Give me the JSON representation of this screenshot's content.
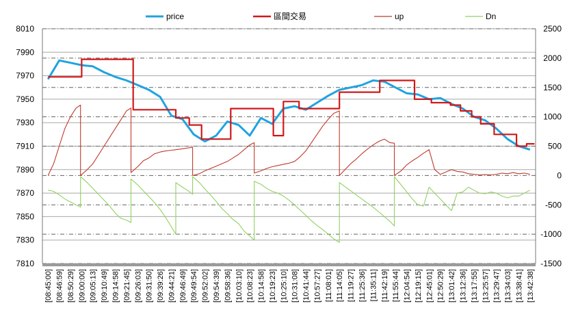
{
  "chart_data": {
    "type": "line",
    "legend": [
      {
        "name": "price",
        "color": "#1fa3e0"
      },
      {
        "name": "區間交易",
        "color": "#d01818"
      },
      {
        "name": "up",
        "color": "#c0392b"
      },
      {
        "name": "Dn",
        "color": "#8fd160"
      }
    ],
    "legend_position": "top",
    "y_left": {
      "min": 7810,
      "max": 8010,
      "ticks": [
        "8010",
        "7990",
        "7970",
        "7950",
        "7930",
        "7910",
        "7890",
        "7870",
        "7850",
        "7830",
        "7810"
      ]
    },
    "y_right": {
      "min": -1500,
      "max": 2500,
      "ticks": [
        "2500",
        "2000",
        "1500",
        "1000",
        "500",
        "0",
        "-500",
        "-1000",
        "-1500"
      ]
    },
    "x_ticks": [
      "[08:45:00]",
      "[08:46:59]",
      "[08:50:29]",
      "[09:00:00]",
      "[09:05:13]",
      "[09:10:49]",
      "[09:14:58]",
      "[09:21:45]",
      "[09:26:03]",
      "[09:31:50]",
      "[09:39:26]",
      "[09:44:21]",
      "[09:46:49]",
      "[09:49:54]",
      "[09:52:02]",
      "[09:54:39]",
      "[09:58:36]",
      "[10:03:10]",
      "[10:08:23]",
      "[10:14:58]",
      "[10:19:23]",
      "[10:25:10]",
      "[10:31:08]",
      "[10:41:44]",
      "[10:57:27]",
      "[11:08:01]",
      "[11:14:05]",
      "[11:19:27]",
      "[11:25:36]",
      "[11:35:11]",
      "[11:42:19]",
      "[11:55:44]",
      "[12:04:54]",
      "[12:19:15]",
      "[12:45:01]",
      "[12:50:29]",
      "[13:01:42]",
      "[13:12:36]",
      "[13:17:55]",
      "[13:25:57]",
      "[13:29:47]",
      "[13:34:03]",
      "[13:38:41]",
      "[13:42:38]"
    ],
    "series": [
      {
        "name": "price",
        "axis": "left",
        "color": "#1fa3e0",
        "x": [
          0,
          1,
          2,
          3,
          4,
          5,
          6,
          7,
          8,
          9,
          10,
          11,
          12,
          13,
          14,
          15,
          16,
          17,
          18,
          19,
          20,
          21,
          22,
          23,
          24,
          25,
          26,
          27,
          28,
          29,
          30,
          31,
          32,
          33,
          34,
          35,
          36,
          37,
          38,
          39,
          40,
          41,
          42,
          43
        ],
        "values": [
          7967,
          7983,
          7981,
          7979,
          7978,
          7973,
          7969,
          7966,
          7962,
          7958,
          7952,
          7936,
          7933,
          7920,
          7914,
          7919,
          7931,
          7928,
          7919,
          7934,
          7929,
          7942,
          7944,
          7941,
          7947,
          7953,
          7958,
          7960,
          7962,
          7966,
          7965,
          7960,
          7955,
          7954,
          7950,
          7951,
          7946,
          7942,
          7935,
          7932,
          7925,
          7916,
          7910,
          7907
        ]
      },
      {
        "name": "區間交易",
        "axis": "left",
        "color": "#d01818",
        "x": [
          0,
          3,
          3,
          7.6,
          7.6,
          11.4,
          11.4,
          12.6,
          12.6,
          13.7,
          13.7,
          16.3,
          16.3,
          20.1,
          20.1,
          21,
          21,
          22.4,
          22.4,
          26,
          26,
          29.6,
          29.6,
          32.7,
          32.7,
          34.2,
          34.2,
          35.9,
          35.9,
          36.8,
          36.8,
          37.8,
          37.8,
          38.6,
          38.6,
          39.8,
          39.8,
          41.8,
          41.8,
          42.7,
          42.7,
          43.4
        ],
        "values": [
          7969,
          7969,
          7984,
          7984,
          7941,
          7941,
          7934,
          7934,
          7928,
          7928,
          7916,
          7916,
          7942,
          7942,
          7919,
          7919,
          7948,
          7948,
          7942,
          7942,
          7956,
          7956,
          7966,
          7966,
          7950,
          7950,
          7947,
          7947,
          7945,
          7945,
          7940,
          7940,
          7935,
          7935,
          7929,
          7929,
          7920,
          7920,
          7910,
          7910,
          7912,
          7912
        ]
      },
      {
        "name": "up",
        "axis": "right",
        "color": "#c0392b",
        "x": [
          0,
          0.5,
          1,
          1.5,
          2,
          2.5,
          2.9,
          2.9,
          3.5,
          4,
          4.5,
          5,
          5.5,
          6,
          6.5,
          7,
          7.4,
          7.4,
          8,
          8.5,
          9,
          9.5,
          10,
          10.5,
          11,
          11.8,
          12.5,
          12.9,
          12.9,
          13.5,
          14,
          14.5,
          15,
          15.5,
          16,
          16.5,
          17,
          17.5,
          18,
          18.4,
          18.4,
          19,
          19.5,
          20,
          20.5,
          21,
          21.5,
          22,
          22.5,
          23,
          23.5,
          24,
          24.5,
          25,
          25.5,
          26,
          26,
          26.5,
          27,
          27.5,
          28,
          28.5,
          29,
          29.5,
          30,
          30.5,
          30.9,
          30.9,
          31.5,
          32,
          32.5,
          33,
          33.5,
          34,
          34.5,
          35,
          35.5,
          36,
          36.5,
          37,
          37.5,
          38,
          38.5,
          39,
          39.5,
          40,
          40.5,
          41,
          41.5,
          42,
          42.5,
          43
        ],
        "values": [
          0,
          200,
          500,
          800,
          1000,
          1150,
          1200,
          0,
          100,
          200,
          350,
          500,
          650,
          800,
          950,
          1100,
          1150,
          50,
          150,
          250,
          300,
          370,
          400,
          420,
          430,
          450,
          470,
          480,
          0,
          30,
          80,
          120,
          160,
          200,
          240,
          300,
          360,
          440,
          520,
          560,
          40,
          80,
          120,
          150,
          170,
          190,
          210,
          240,
          320,
          420,
          560,
          700,
          840,
          960,
          1060,
          1100,
          0,
          100,
          200,
          280,
          370,
          450,
          520,
          580,
          620,
          560,
          550,
          0,
          80,
          180,
          250,
          310,
          380,
          440,
          100,
          20,
          60,
          100,
          70,
          60,
          30,
          20,
          10,
          15,
          10,
          20,
          40,
          30,
          50,
          30,
          40,
          20
        ]
      },
      {
        "name": "Dn",
        "axis": "right",
        "color": "#8fd160",
        "x": [
          0,
          0.5,
          1,
          1.5,
          2,
          2.5,
          2.9,
          2.9,
          3.5,
          4,
          4.5,
          5,
          5.5,
          6,
          6.5,
          7,
          7.4,
          7.4,
          8,
          8.5,
          9,
          9.5,
          10,
          10.5,
          11,
          11.4,
          11.4,
          12,
          12.5,
          12.9,
          12.9,
          13.5,
          14,
          14.5,
          15,
          15.5,
          16,
          16.5,
          17,
          17.5,
          18,
          18.4,
          18.4,
          19,
          19.5,
          20,
          20.5,
          21,
          21.5,
          22,
          22.5,
          23,
          23.5,
          24,
          24.5,
          25,
          25.5,
          26,
          26,
          26.5,
          27,
          27.5,
          28,
          28.5,
          29,
          29.5,
          30,
          30.5,
          30.9,
          30.9,
          31.5,
          32,
          32.5,
          33,
          33.5,
          34,
          34.5,
          35,
          35.5,
          36,
          36.5,
          37,
          37.5,
          38,
          38.5,
          39,
          39.5,
          40,
          40.5,
          41,
          41.5,
          42,
          42.5,
          43
        ],
        "values": [
          -250,
          -270,
          -330,
          -400,
          -450,
          -500,
          -540,
          -20,
          -120,
          -220,
          -320,
          -420,
          -520,
          -640,
          -730,
          -760,
          -800,
          -60,
          -160,
          -260,
          -360,
          -460,
          -580,
          -720,
          -870,
          -1000,
          -120,
          -200,
          -260,
          -320,
          -20,
          -120,
          -230,
          -330,
          -440,
          -560,
          -650,
          -750,
          -820,
          -950,
          -1030,
          -1100,
          -100,
          -150,
          -220,
          -270,
          -300,
          -350,
          -420,
          -500,
          -590,
          -680,
          -770,
          -850,
          -920,
          -1000,
          -1080,
          -1140,
          -120,
          -190,
          -260,
          -330,
          -400,
          -470,
          -540,
          -620,
          -700,
          -780,
          -860,
          -20,
          -160,
          -280,
          -400,
          -500,
          -520,
          -200,
          -300,
          -400,
          -500,
          -600,
          -300,
          -280,
          -200,
          -250,
          -300,
          -310,
          -280,
          -300,
          -350,
          -380,
          -350,
          -350,
          -300,
          -250
        ]
      }
    ]
  }
}
